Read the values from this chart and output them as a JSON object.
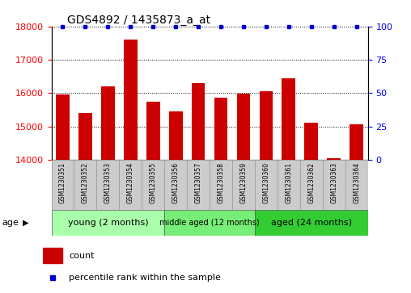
{
  "title": "GDS4892 / 1435873_a_at",
  "samples": [
    "GSM1230351",
    "GSM1230352",
    "GSM1230353",
    "GSM1230354",
    "GSM1230355",
    "GSM1230356",
    "GSM1230357",
    "GSM1230358",
    "GSM1230359",
    "GSM1230360",
    "GSM1230361",
    "GSM1230362",
    "GSM1230363",
    "GSM1230364"
  ],
  "counts": [
    15950,
    15400,
    16200,
    17600,
    15750,
    15450,
    16300,
    15850,
    15980,
    16050,
    16450,
    15100,
    14050,
    15050
  ],
  "percentiles": [
    100,
    100,
    100,
    100,
    100,
    100,
    100,
    100,
    100,
    100,
    100,
    100,
    100,
    100
  ],
  "bar_color": "#cc0000",
  "dot_color": "#0000cc",
  "ylim_left": [
    14000,
    18000
  ],
  "ylim_right": [
    0,
    100
  ],
  "yticks_left": [
    14000,
    15000,
    16000,
    17000,
    18000
  ],
  "yticks_right": [
    0,
    25,
    50,
    75,
    100
  ],
  "groups": [
    {
      "label": "young (2 months)",
      "start": 0,
      "end": 5,
      "color": "#aaffaa"
    },
    {
      "label": "middle aged (12 months)",
      "start": 5,
      "end": 9,
      "color": "#77ee77"
    },
    {
      "label": "aged (24 months)",
      "start": 9,
      "end": 14,
      "color": "#33cc33"
    }
  ],
  "age_label": "age",
  "legend_count_label": "count",
  "legend_pct_label": "percentile rank within the sample",
  "bg_color": "#ffffff",
  "tick_label_area_color": "#cccccc",
  "grid_style": "dotted"
}
